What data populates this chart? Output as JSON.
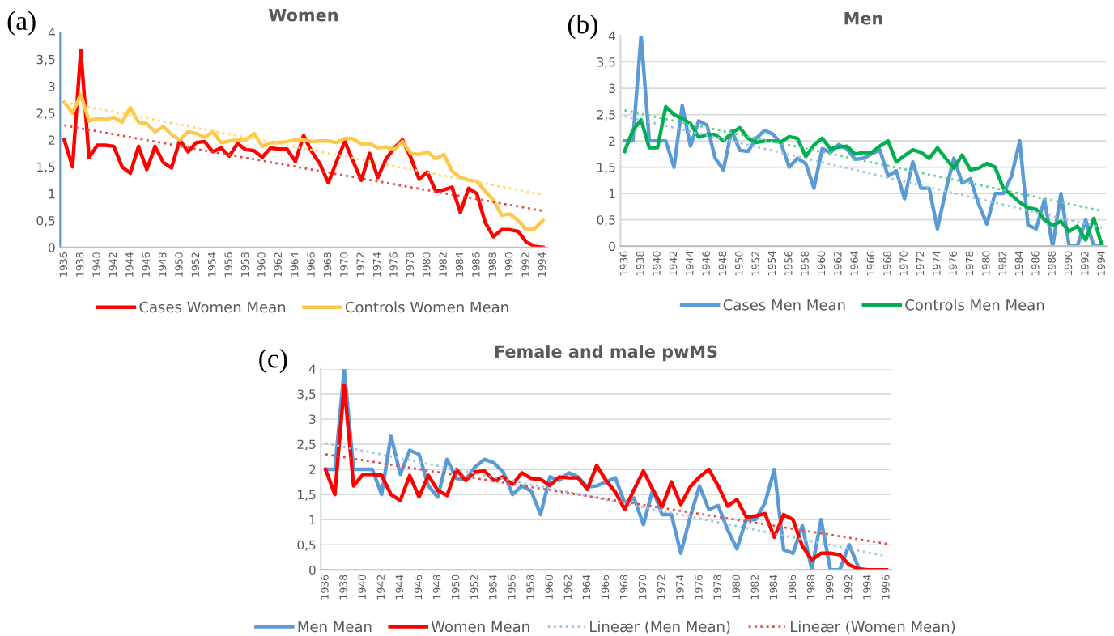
{
  "chart_data": [
    {
      "type": "line",
      "title": "Women",
      "annotations": [
        "(a)"
      ],
      "grid": false,
      "legend": "bottom",
      "line_style": "solid",
      "marker": "none",
      "x": [
        1936,
        1937,
        1938,
        1939,
        1940,
        1941,
        1942,
        1943,
        1944,
        1945,
        1946,
        1947,
        1948,
        1949,
        1950,
        1951,
        1952,
        1953,
        1954,
        1955,
        1956,
        1957,
        1958,
        1959,
        1960,
        1961,
        1962,
        1963,
        1964,
        1965,
        1966,
        1967,
        1968,
        1969,
        1970,
        1971,
        1972,
        1973,
        1974,
        1975,
        1976,
        1977,
        1978,
        1979,
        1980,
        1981,
        1982,
        1983,
        1984,
        1985,
        1986,
        1987,
        1988,
        1989,
        1990,
        1991,
        1992,
        1993,
        1994
      ],
      "xlim": [
        1935.5,
        1994.5
      ],
      "xticks": [
        1936,
        1938,
        1940,
        1942,
        1944,
        1946,
        1948,
        1950,
        1952,
        1954,
        1956,
        1958,
        1960,
        1962,
        1964,
        1966,
        1968,
        1970,
        1972,
        1974,
        1976,
        1978,
        1980,
        1982,
        1984,
        1986,
        1988,
        1990,
        1992,
        1994
      ],
      "ylim": [
        0,
        4
      ],
      "yticks": [
        0,
        {
          "value": 0.5,
          "label": "0,5"
        },
        1,
        {
          "value": 1.5,
          "label": "1,5"
        },
        2,
        {
          "value": 2.5,
          "label": "2,5"
        },
        3,
        {
          "value": 3.5,
          "label": "3,5"
        },
        4
      ],
      "series": [
        {
          "name": "Cases Women Mean",
          "color": "#ff0000",
          "values": [
            2.0,
            1.5,
            3.67,
            1.67,
            1.9,
            1.9,
            1.88,
            1.5,
            1.38,
            1.88,
            1.45,
            1.88,
            1.58,
            1.48,
            2.0,
            1.78,
            1.95,
            1.97,
            1.78,
            1.85,
            1.7,
            1.93,
            1.82,
            1.8,
            1.68,
            1.85,
            1.83,
            1.83,
            1.6,
            2.08,
            1.78,
            1.55,
            1.2,
            1.6,
            1.97,
            1.6,
            1.25,
            1.75,
            1.3,
            1.65,
            1.85,
            2.0,
            1.67,
            1.27,
            1.4,
            1.05,
            1.07,
            1.12,
            0.65,
            1.1,
            1.0,
            0.47,
            0.2,
            0.33,
            0.33,
            0.3,
            0.1,
            0.02,
            0.0
          ]
        },
        {
          "name": "Controls Women Mean",
          "color": "#ffc84a",
          "values": [
            2.7,
            2.5,
            2.85,
            2.35,
            2.4,
            2.38,
            2.42,
            2.33,
            2.6,
            2.33,
            2.3,
            2.15,
            2.25,
            2.1,
            2.0,
            2.15,
            2.12,
            2.05,
            2.15,
            1.95,
            1.98,
            2.0,
            2.0,
            2.12,
            1.88,
            1.95,
            1.95,
            1.97,
            2.0,
            2.0,
            1.97,
            1.98,
            1.98,
            1.95,
            2.03,
            2.02,
            1.92,
            1.93,
            1.85,
            1.87,
            1.82,
            1.97,
            1.75,
            1.73,
            1.78,
            1.65,
            1.73,
            1.42,
            1.3,
            1.25,
            1.23,
            1.05,
            0.88,
            0.6,
            0.62,
            0.5,
            0.33,
            0.35,
            0.5
          ]
        },
        {
          "type": "line",
          "line_style": "dotted",
          "color": "#e8484a",
          "x": [
            1936,
            1994
          ],
          "values": [
            2.27,
            0.68
          ]
        },
        {
          "type": "line",
          "line_style": "dotted",
          "color": "#ffd966",
          "x": [
            1936,
            1994
          ],
          "values": [
            2.7,
            0.98
          ]
        }
      ]
    },
    {
      "type": "line",
      "title": "Men",
      "annotations": [
        "(b)"
      ],
      "grid": "y",
      "legend": "bottom",
      "line_style": "solid",
      "marker": "none",
      "x": [
        1936,
        1937,
        1938,
        1939,
        1940,
        1941,
        1942,
        1943,
        1944,
        1945,
        1946,
        1947,
        1948,
        1949,
        1950,
        1951,
        1952,
        1953,
        1954,
        1955,
        1956,
        1957,
        1958,
        1959,
        1960,
        1961,
        1962,
        1963,
        1964,
        1965,
        1966,
        1967,
        1968,
        1969,
        1970,
        1971,
        1972,
        1973,
        1974,
        1975,
        1976,
        1977,
        1978,
        1979,
        1980,
        1981,
        1982,
        1983,
        1984,
        1985,
        1986,
        1987,
        1988,
        1989,
        1990,
        1991,
        1992,
        1993,
        1994
      ],
      "xlim": [
        1935.5,
        1994.5
      ],
      "xticks": [
        1936,
        1938,
        1940,
        1942,
        1944,
        1946,
        1948,
        1950,
        1952,
        1954,
        1956,
        1958,
        1960,
        1962,
        1964,
        1966,
        1968,
        1970,
        1972,
        1974,
        1976,
        1978,
        1980,
        1982,
        1984,
        1986,
        1988,
        1990,
        1992,
        1994
      ],
      "ylim": [
        0,
        4
      ],
      "yticks": [
        0,
        {
          "value": 0.5,
          "label": "0,5"
        },
        1,
        {
          "value": 1.5,
          "label": "1,5"
        },
        2,
        {
          "value": 2.5,
          "label": "2,5"
        },
        3,
        {
          "value": 3.5,
          "label": "3,5"
        },
        4
      ],
      "series": [
        {
          "name": "Cases Men Mean",
          "color": "#5b9bd5",
          "values": [
            2.0,
            2.0,
            4.0,
            2.0,
            2.0,
            2.0,
            1.5,
            2.67,
            1.9,
            2.38,
            2.3,
            1.67,
            1.45,
            2.2,
            1.82,
            1.8,
            2.05,
            2.2,
            2.13,
            1.95,
            1.5,
            1.67,
            1.57,
            1.1,
            1.85,
            1.78,
            1.93,
            1.85,
            1.65,
            1.67,
            1.75,
            1.83,
            1.33,
            1.43,
            0.9,
            1.6,
            1.1,
            1.1,
            0.33,
            1.05,
            1.67,
            1.2,
            1.28,
            0.8,
            0.42,
            1.0,
            1.0,
            1.33,
            2.0,
            0.4,
            0.33,
            0.88,
            0.0,
            1.0,
            0.0,
            0.0,
            0.5,
            0.0,
            0.0
          ]
        },
        {
          "name": "Controls Men Mean",
          "color": "#00b050",
          "values": [
            1.8,
            2.2,
            2.4,
            1.87,
            1.87,
            2.65,
            2.5,
            2.42,
            2.33,
            2.07,
            2.12,
            2.12,
            2.0,
            2.15,
            2.25,
            2.05,
            1.97,
            2.0,
            2.0,
            1.98,
            2.08,
            2.05,
            1.7,
            1.92,
            2.05,
            1.85,
            1.88,
            1.9,
            1.75,
            1.78,
            1.78,
            1.9,
            2.0,
            1.6,
            1.72,
            1.83,
            1.78,
            1.67,
            1.87,
            1.67,
            1.48,
            1.73,
            1.45,
            1.48,
            1.57,
            1.5,
            1.1,
            0.97,
            0.83,
            0.73,
            0.7,
            0.5,
            0.4,
            0.47,
            0.28,
            0.38,
            0.12,
            0.53,
            0.0
          ]
        },
        {
          "type": "line",
          "line_style": "dotted",
          "color": "#9dc3e6",
          "x": [
            1936,
            1994
          ],
          "values": [
            2.47,
            0.35
          ]
        },
        {
          "type": "line",
          "line_style": "dotted",
          "color": "#5fcf8a",
          "x": [
            1936,
            1994
          ],
          "values": [
            2.58,
            0.67
          ]
        }
      ]
    },
    {
      "type": "line",
      "title": "Female and male pwMS",
      "annotations": [
        "(c)"
      ],
      "grid": "y",
      "legend": "bottom",
      "line_style": "solid",
      "marker": "none",
      "x": [
        1936,
        1937,
        1938,
        1939,
        1940,
        1941,
        1942,
        1943,
        1944,
        1945,
        1946,
        1947,
        1948,
        1949,
        1950,
        1951,
        1952,
        1953,
        1954,
        1955,
        1956,
        1957,
        1958,
        1959,
        1960,
        1961,
        1962,
        1963,
        1964,
        1965,
        1966,
        1967,
        1968,
        1969,
        1970,
        1971,
        1972,
        1973,
        1974,
        1975,
        1976,
        1977,
        1978,
        1979,
        1980,
        1981,
        1982,
        1983,
        1984,
        1985,
        1986,
        1987,
        1988,
        1989,
        1990,
        1991,
        1992,
        1993,
        1994,
        1995,
        1996
      ],
      "xlim": [
        1935.5,
        1996.5
      ],
      "xticks": [
        1936,
        1938,
        1940,
        1942,
        1944,
        1946,
        1948,
        1950,
        1952,
        1954,
        1956,
        1958,
        1960,
        1962,
        1964,
        1966,
        1968,
        1970,
        1972,
        1974,
        1976,
        1978,
        1980,
        1982,
        1984,
        1986,
        1988,
        1990,
        1992,
        1994,
        1996
      ],
      "ylim": [
        0,
        4
      ],
      "yticks": [
        0,
        {
          "value": 0.5,
          "label": "0,5"
        },
        1,
        {
          "value": 1.5,
          "label": "1,5"
        },
        2,
        {
          "value": 2.5,
          "label": "2,5"
        },
        3,
        {
          "value": 3.5,
          "label": "3,5"
        },
        4
      ],
      "series": [
        {
          "name": "Men Mean",
          "color": "#5b9bd5",
          "values": [
            2.0,
            2.0,
            4.0,
            2.0,
            2.0,
            2.0,
            1.5,
            2.67,
            1.9,
            2.38,
            2.3,
            1.67,
            1.45,
            2.2,
            1.82,
            1.8,
            2.05,
            2.2,
            2.13,
            1.95,
            1.5,
            1.67,
            1.57,
            1.1,
            1.85,
            1.78,
            1.93,
            1.85,
            1.65,
            1.67,
            1.75,
            1.83,
            1.33,
            1.43,
            0.9,
            1.6,
            1.1,
            1.1,
            0.33,
            1.05,
            1.67,
            1.2,
            1.28,
            0.8,
            0.42,
            1.0,
            1.0,
            1.33,
            2.0,
            0.4,
            0.33,
            0.88,
            0.0,
            1.0,
            0.0,
            0.0,
            0.5,
            0.05,
            null,
            null,
            null
          ]
        },
        {
          "name": "Women Mean",
          "color": "#ff0000",
          "values": [
            2.0,
            1.5,
            3.67,
            1.67,
            1.9,
            1.9,
            1.88,
            1.5,
            1.38,
            1.88,
            1.45,
            1.88,
            1.58,
            1.48,
            2.0,
            1.78,
            1.95,
            1.97,
            1.78,
            1.85,
            1.7,
            1.93,
            1.82,
            1.8,
            1.68,
            1.85,
            1.83,
            1.83,
            1.6,
            2.08,
            1.78,
            1.55,
            1.2,
            1.6,
            1.97,
            1.6,
            1.25,
            1.75,
            1.3,
            1.65,
            1.85,
            2.0,
            1.67,
            1.27,
            1.4,
            1.05,
            1.07,
            1.12,
            0.65,
            1.1,
            1.0,
            0.47,
            0.2,
            0.33,
            0.33,
            0.3,
            0.1,
            0.02,
            0.0,
            0.0,
            0.0
          ]
        },
        {
          "name": "Lineær (Men Mean)",
          "type": "line",
          "line_style": "dotted",
          "color": "#9dc3e6",
          "x": [
            1936,
            1996
          ],
          "values": [
            2.52,
            0.27
          ]
        },
        {
          "name": "Lineær (Women Mean)",
          "type": "line",
          "line_style": "dotted",
          "color": "#e8484a",
          "x": [
            1936,
            1996
          ],
          "values": [
            2.3,
            0.52
          ]
        }
      ]
    }
  ]
}
